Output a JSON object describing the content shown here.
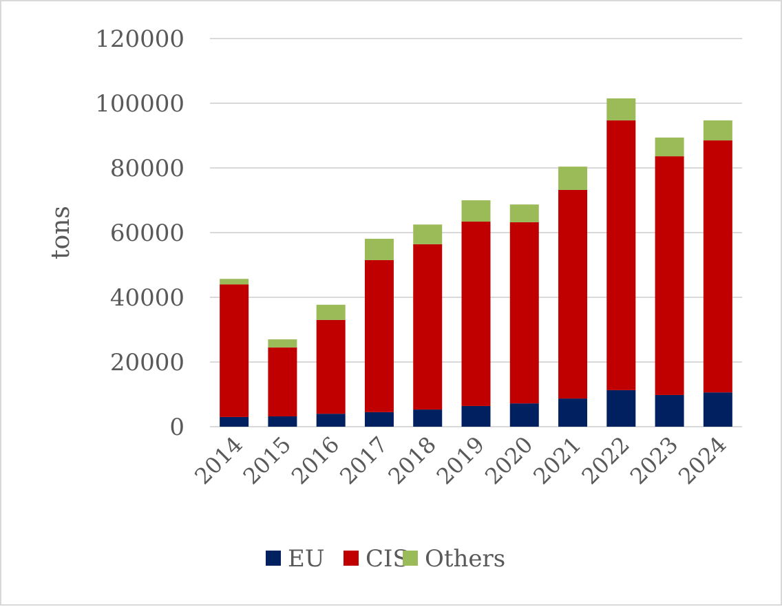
{
  "chart_data": {
    "type": "bar",
    "stacked": true,
    "title": "",
    "xlabel": "",
    "ylabel": "tons",
    "ylim": [
      0,
      120000
    ],
    "yticks": [
      0,
      20000,
      40000,
      60000,
      80000,
      100000,
      120000
    ],
    "grid": true,
    "legend_position": "bottom",
    "categories": [
      "2014",
      "2015",
      "2016",
      "2017",
      "2018",
      "2019",
      "2020",
      "2021",
      "2022",
      "2023",
      "2024"
    ],
    "series": [
      {
        "name": "EU",
        "color": "#002060",
        "values": [
          3000,
          3200,
          4000,
          4500,
          5300,
          6400,
          7200,
          8700,
          11300,
          9800,
          10600
        ]
      },
      {
        "name": "CIS",
        "color": "#C00000",
        "values": [
          41000,
          21300,
          29000,
          47000,
          51100,
          57000,
          56000,
          64500,
          83400,
          73800,
          77900
        ]
      },
      {
        "name": "Others",
        "color": "#9BBB59",
        "values": [
          1700,
          2500,
          4700,
          6600,
          6100,
          6600,
          5500,
          7200,
          6800,
          5800,
          6200
        ]
      }
    ]
  }
}
